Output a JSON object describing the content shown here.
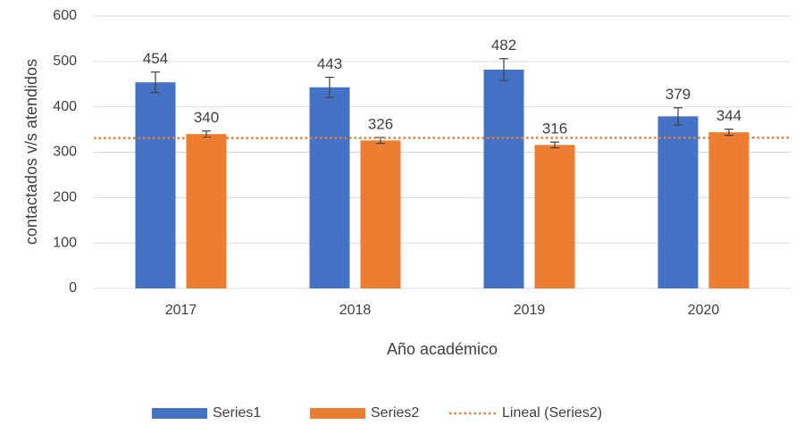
{
  "chart_data": {
    "type": "bar",
    "categories": [
      "2017",
      "2018",
      "2019",
      "2020"
    ],
    "series": [
      {
        "name": "Series1",
        "color": "#4472c4",
        "values": [
          454,
          443,
          482,
          379
        ],
        "errors": [
          22.7,
          22.15,
          24.1,
          18.95
        ]
      },
      {
        "name": "Series2",
        "color": "#ed7d31",
        "values": [
          340,
          326,
          316,
          344
        ],
        "errors": [
          6.8,
          6.52,
          6.32,
          6.88
        ]
      }
    ],
    "trendline": {
      "name": "Lineal (Series2)",
      "series": 1,
      "color": "#ed7d31"
    },
    "ylim": [
      0,
      600
    ],
    "yticks": [
      0,
      100,
      200,
      300,
      400,
      500,
      600
    ],
    "xlabel": "Año académico",
    "ylabel": "contactados v/s atendidos",
    "grid": true,
    "legend": "bottom"
  }
}
